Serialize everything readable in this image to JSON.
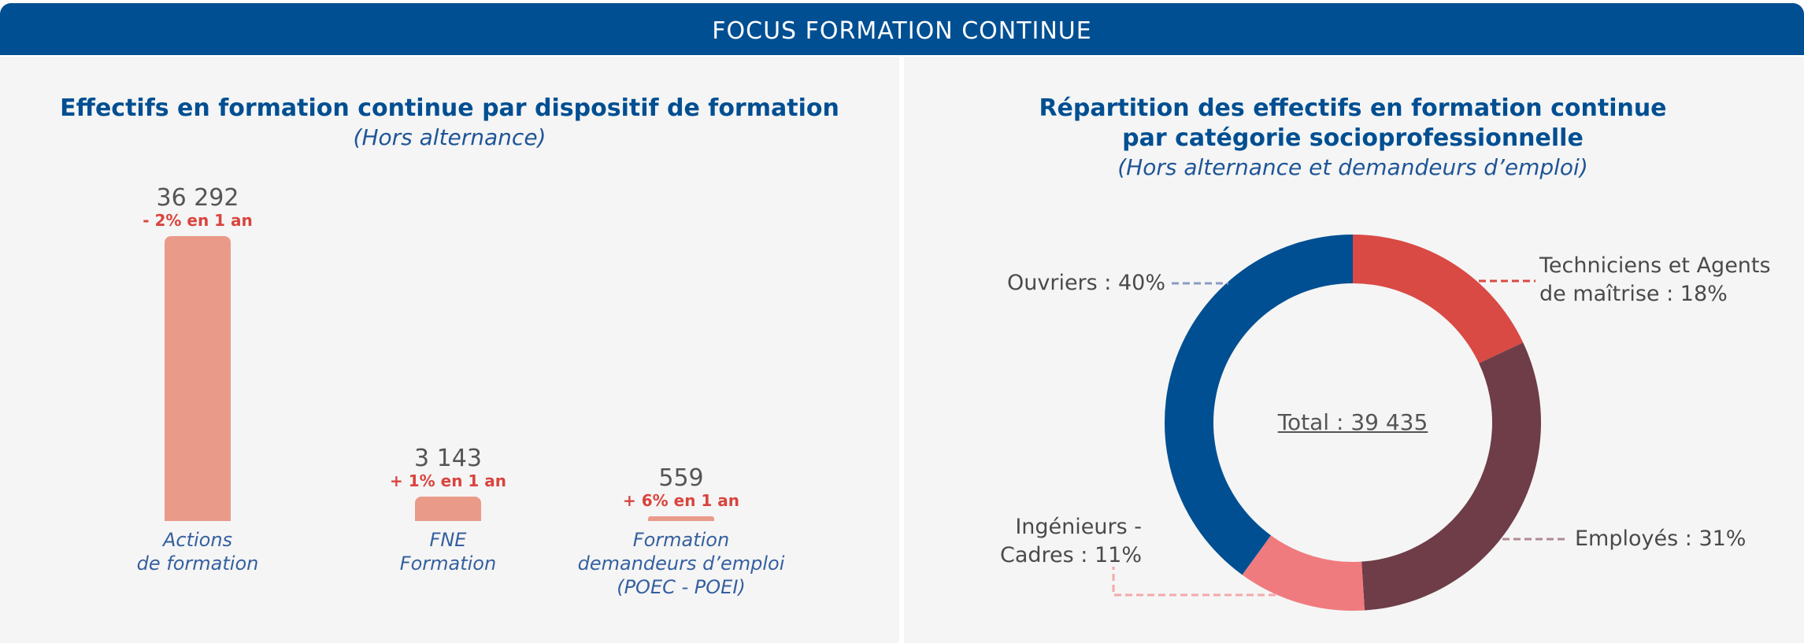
{
  "header": {
    "title": "FOCUS FORMATION CONTINUE"
  },
  "left": {
    "title": "Effectifs en formation continue par dispositif de formation",
    "subtitle": "(Hors alternance)"
  },
  "right": {
    "title_line1": "Répartition des effectifs en formation continue",
    "title_line2": "par catégorie socioprofessionnelle",
    "subtitle": "(Hors alternance et demandeurs d’emploi)",
    "total": "Total : 39 435"
  },
  "chart_data": [
    {
      "type": "bar",
      "title": "Effectifs en formation continue par dispositif de formation",
      "subtitle": "(Hors alternance)",
      "categories": [
        "Actions de formation",
        "FNE Formation",
        "Formation demandeurs d’emploi (POEC - POEI)"
      ],
      "category_lines": [
        [
          "Actions",
          "de formation"
        ],
        [
          "FNE",
          "Formation"
        ],
        [
          "Formation",
          "demandeurs d’emploi",
          "(POEC - POEI)"
        ]
      ],
      "values": [
        36292,
        3143,
        559
      ],
      "value_labels": [
        "36 292",
        "3 143",
        "559"
      ],
      "change_labels": [
        "- 2% en 1 an",
        "+ 1% en 1 an",
        "+ 6% en 1 an"
      ],
      "bar_color": "#ea9a89",
      "change_color": "#d9443e"
    },
    {
      "type": "pie",
      "style": "donut",
      "title": "Répartition des effectifs en formation continue par catégorie socioprofessionnelle",
      "subtitle": "(Hors alternance et demandeurs d’emploi)",
      "total_label": "Total : 39 435",
      "slices": [
        {
          "name": "Techniciens et Agents de maîtrise",
          "value": 18,
          "label_lines": [
            "Techniciens et Agents",
            "de maîtrise : 18%"
          ],
          "color": "#d94a45"
        },
        {
          "name": "Employés",
          "value": 31,
          "label_lines": [
            "Employés : 31%"
          ],
          "color": "#6e3d48"
        },
        {
          "name": "Ingénieurs - Cadres",
          "value": 11,
          "label_lines": [
            "Ingénieurs -",
            "Cadres : 11%"
          ],
          "color": "#f07b7e"
        },
        {
          "name": "Ouvriers",
          "value": 40,
          "label_lines": [
            "Ouvriers : 40%"
          ],
          "color": "#004f92"
        }
      ]
    }
  ]
}
